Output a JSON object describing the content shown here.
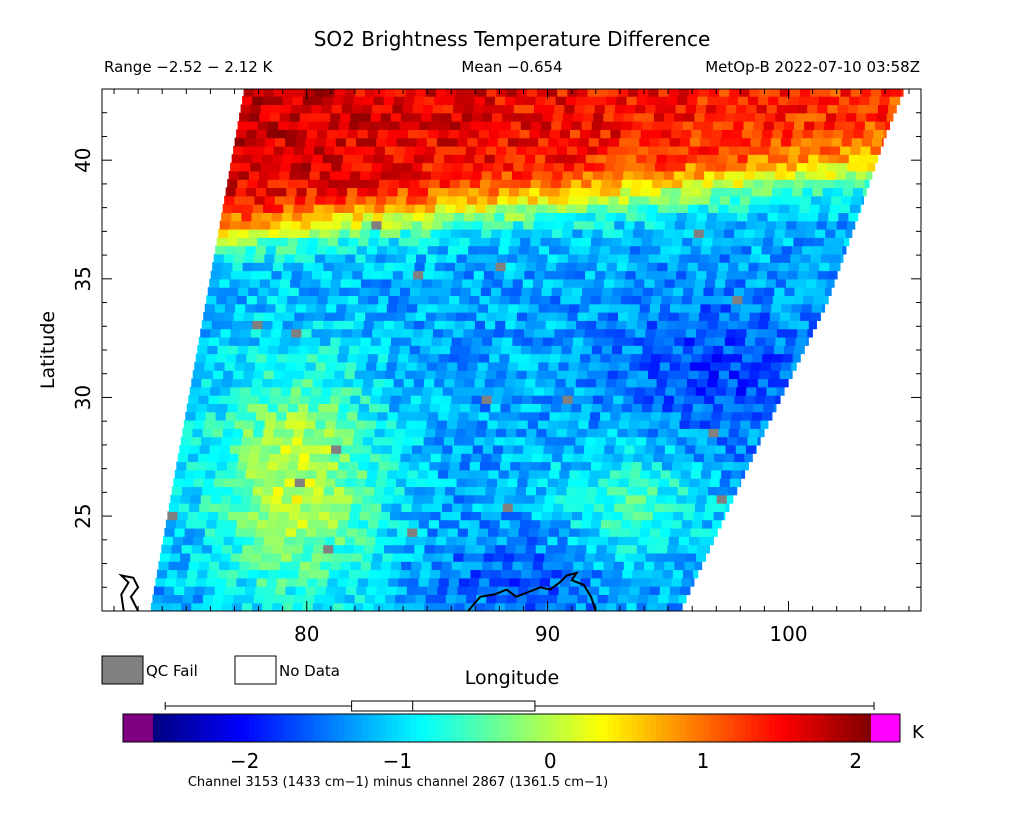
{
  "chart_data": {
    "type": "heatmap",
    "title": "SO2 Brightness Temperature Difference",
    "header": {
      "range": "Range −2.52 − 2.12 K",
      "mean": "Mean −0.654",
      "satellite_time": "MetOp-B 2022-07-10 03:58Z"
    },
    "xlabel": "Longitude",
    "ylabel": "Latitude",
    "xlim": [
      71.5,
      105.5
    ],
    "ylim": [
      21,
      43
    ],
    "x_ticks": [
      80,
      90,
      100
    ],
    "y_ticks": [
      25,
      30,
      35,
      40
    ],
    "swath": {
      "west_edge": [
        [
          73.5,
          21
        ],
        [
          77.4,
          43
        ]
      ],
      "east_edge": [
        [
          95.5,
          21
        ],
        [
          99.2,
          29
        ],
        [
          101.6,
          34
        ],
        [
          103.0,
          38
        ],
        [
          104.0,
          41
        ],
        [
          104.8,
          43
        ]
      ]
    },
    "regions": [
      {
        "name": "warm north band",
        "approx_value": 1.6,
        "bounds_lat": [
          36.5,
          43
        ]
      },
      {
        "name": "cold central band",
        "approx_value": -1.5,
        "bounds_lat": [
          24,
          36
        ]
      },
      {
        "name": "moderate southwest",
        "approx_value": 0.3,
        "bounds_lat": [
          21,
          31
        ]
      }
    ],
    "colorbar": {
      "min": -2.6,
      "max": 2.1,
      "ticks": [
        -2,
        -1,
        0,
        1,
        2
      ],
      "unit": "K",
      "underflow_color": "#7f0080",
      "overflow_color": "#ff00ff",
      "colormap": [
        "#00007f",
        "#0000ff",
        "#007fff",
        "#00ffff",
        "#7fff7f",
        "#ffff00",
        "#ff7f00",
        "#ff0000",
        "#7f0000"
      ],
      "boxplot": {
        "min": -2.52,
        "q1": -1.3,
        "median": -0.9,
        "q3": -0.1,
        "max": 2.12
      }
    },
    "legend": {
      "qc_fail_label": "QC Fail",
      "qc_fail_color": "#808080",
      "no_data_label": "No Data",
      "no_data_color": "#ffffff"
    },
    "footnote": "Channel 3153 (1433 cm−1) minus channel 2867 (1361.5 cm−1)"
  }
}
